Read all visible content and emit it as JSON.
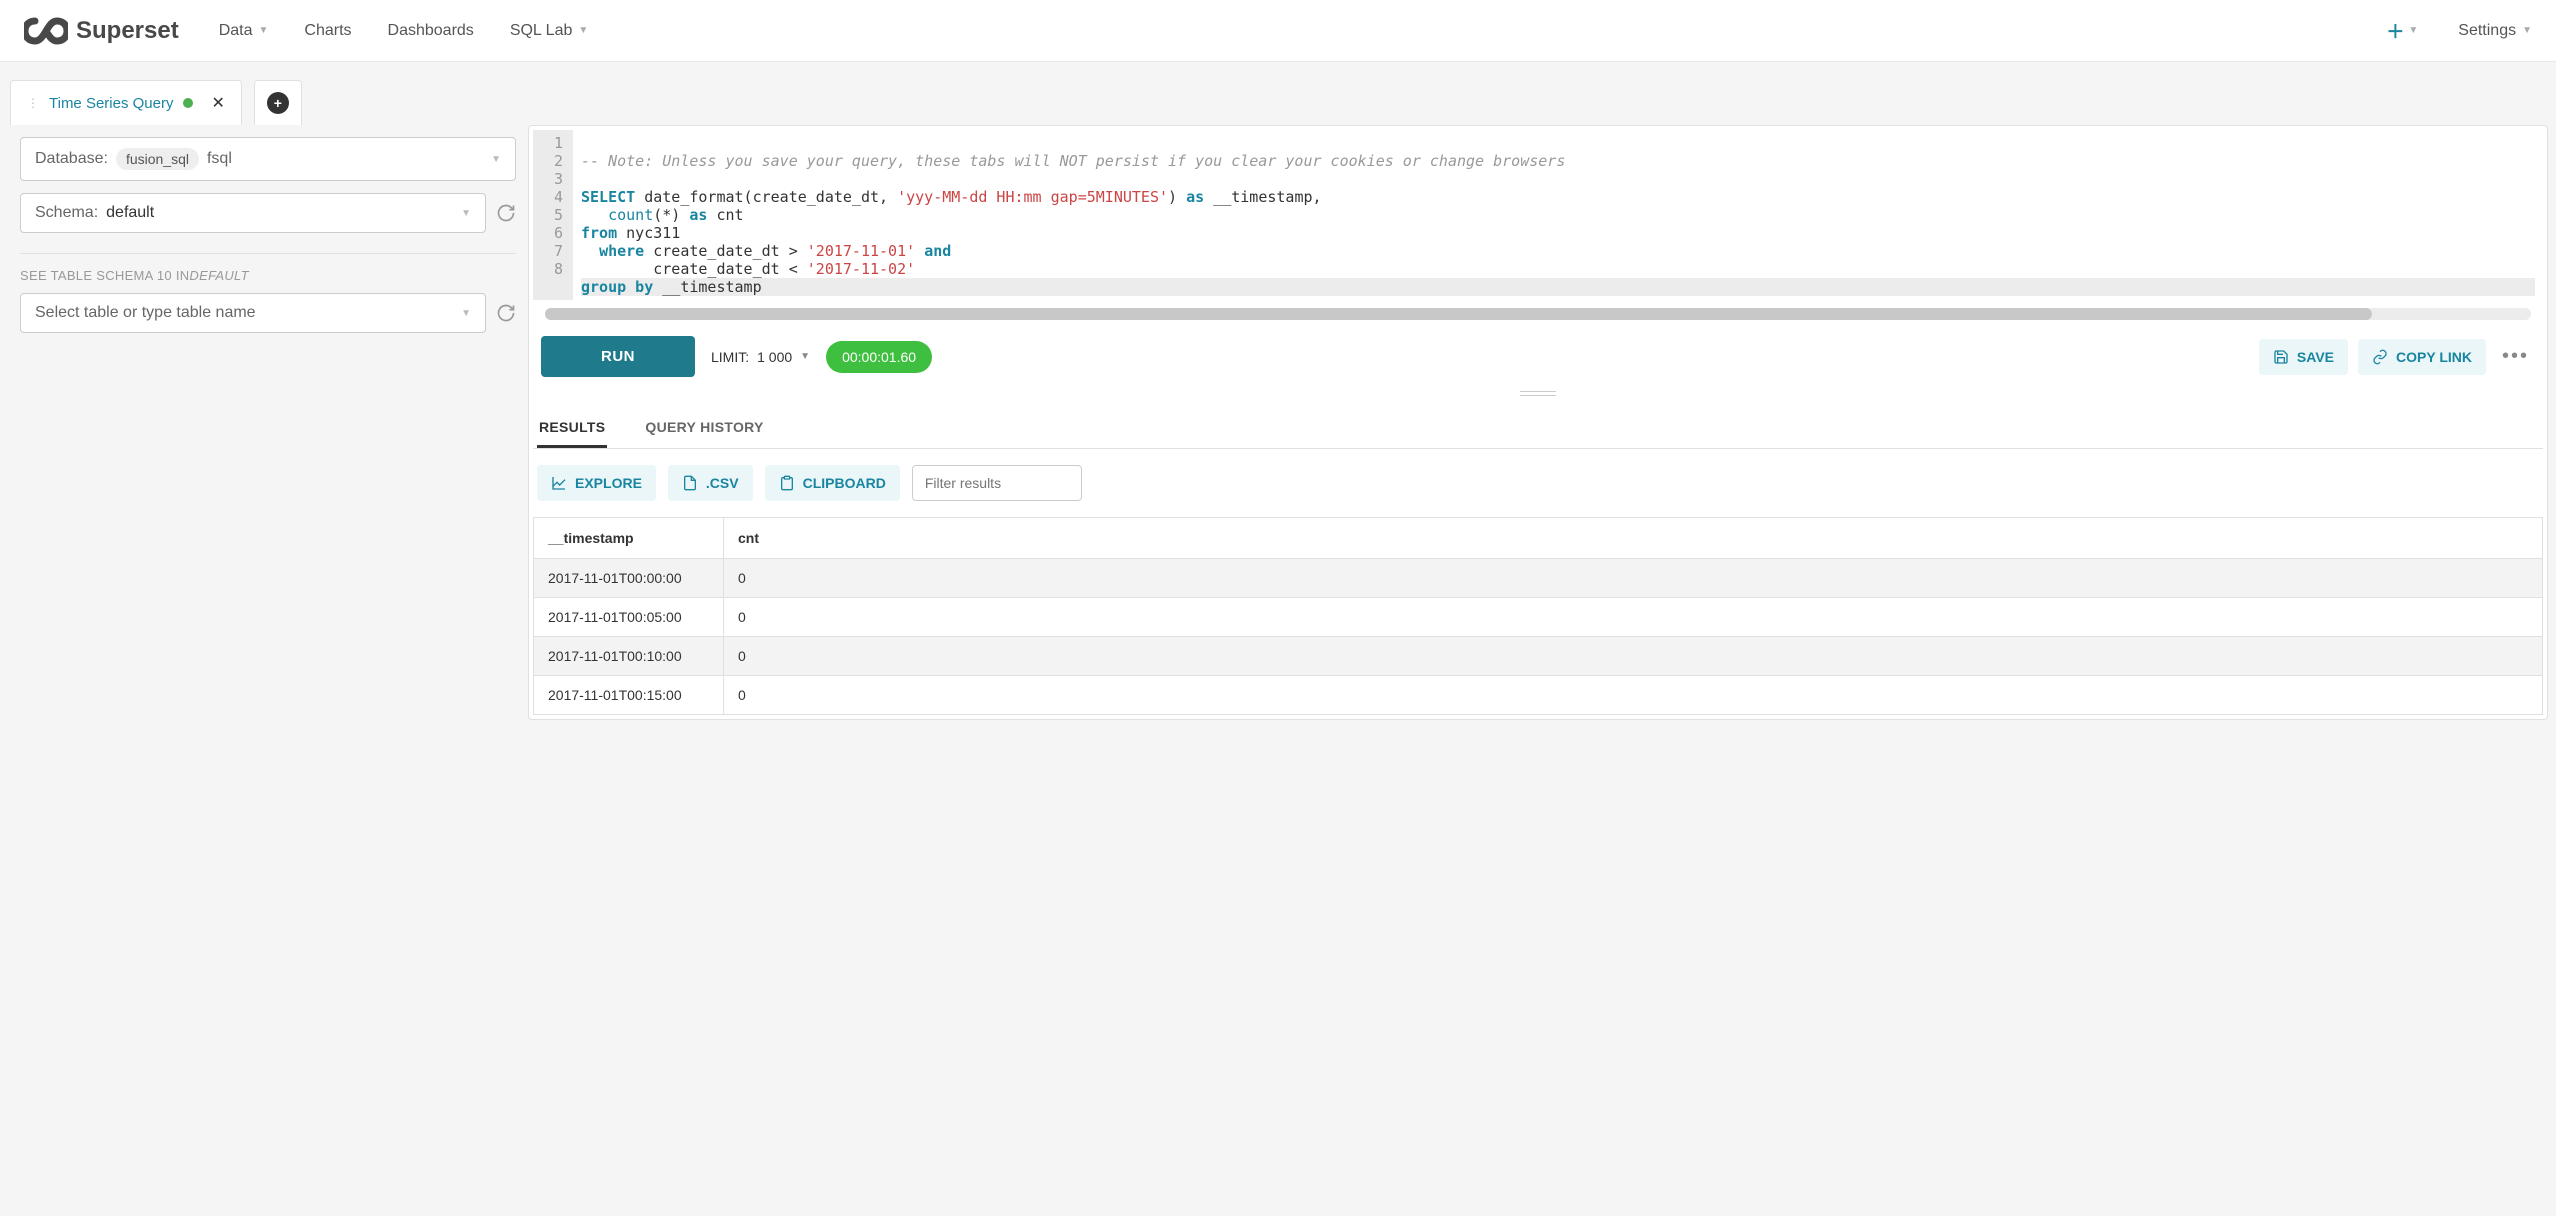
{
  "nav": {
    "brand": "Superset",
    "links": [
      "Data",
      "Charts",
      "Dashboards",
      "SQL Lab"
    ],
    "link_has_caret": [
      true,
      false,
      false,
      true
    ],
    "settings": "Settings"
  },
  "tab": {
    "title": "Time Series Query",
    "dot_color": "#4caf50"
  },
  "left": {
    "database_label": "Database:",
    "database_chip": "fusion_sql",
    "database_value": "fsql",
    "schema_label": "Schema:",
    "schema_value": "default",
    "see_schema_prefix": "SEE TABLE SCHEMA ",
    "see_schema_count": "10 IN",
    "see_schema_suffix": "DEFAULT",
    "table_placeholder": "Select table or type table name"
  },
  "editor": {
    "line_numbers": [
      "1",
      "2",
      "3",
      "4",
      "5",
      "6",
      "7",
      "8"
    ],
    "comment": "-- Note: Unless you save your query, these tabs will NOT persist if you clear your cookies or change browsers",
    "l3_a": "SELECT",
    "l3_b": " date_format(create_date_dt, ",
    "l3_c": "'yyy-MM-dd HH:mm gap=5MINUTES'",
    "l3_d": ") ",
    "l3_e": "as",
    "l3_f": " __timestamp,",
    "l4_a": "   ",
    "l4_b": "count",
    "l4_c": "(*) ",
    "l4_d": "as",
    "l4_e": " cnt",
    "l5_a": "from",
    "l5_b": " nyc311",
    "l6_a": "  ",
    "l6_b": "where",
    "l6_c": " create_date_dt > ",
    "l6_d": "'2017-11-01'",
    "l6_e": " ",
    "l6_f": "and",
    "l7_a": "        create_date_dt < ",
    "l7_b": "'2017-11-02'",
    "l8_a": "group by",
    "l8_b": " __timestamp"
  },
  "toolbar": {
    "run": "RUN",
    "limit_label": "LIMIT:",
    "limit_value": "1 000",
    "timer": "00:00:01.60",
    "save": "SAVE",
    "copy_link": "COPY LINK"
  },
  "results": {
    "tabs": [
      "RESULTS",
      "QUERY HISTORY"
    ],
    "active_tab": 0,
    "actions": {
      "explore": "EXPLORE",
      "csv": ".CSV",
      "clipboard": "CLIPBOARD"
    },
    "filter_placeholder": "Filter results",
    "columns": [
      "__timestamp",
      "cnt"
    ],
    "rows": [
      [
        "2017-11-01T00:00:00",
        "0"
      ],
      [
        "2017-11-01T00:05:00",
        "0"
      ],
      [
        "2017-11-01T00:10:00",
        "0"
      ],
      [
        "2017-11-01T00:15:00",
        "0"
      ]
    ]
  },
  "colors": {
    "accent": "#1985a0",
    "run_btn": "#1f7a8c",
    "timer_bg": "#3fbf3f",
    "light_btn_bg": "#eaf6f8"
  }
}
